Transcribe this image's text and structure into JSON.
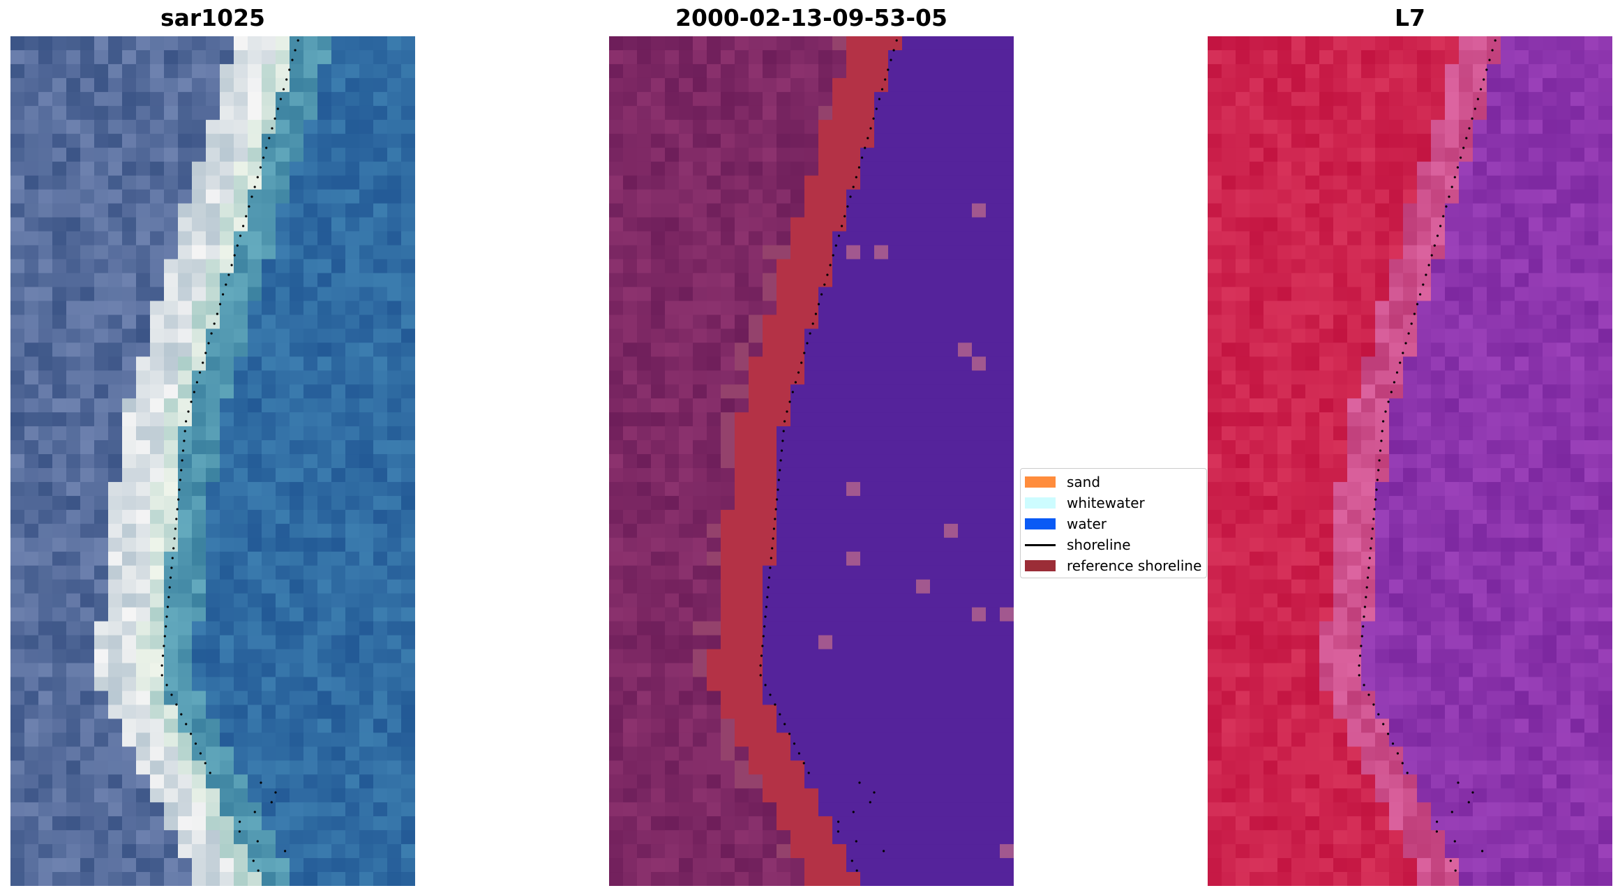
{
  "panels": [
    {
      "title": "sar1025",
      "kind": "rgb"
    },
    {
      "title": "2000-02-13-09-53-05",
      "kind": "classified"
    },
    {
      "title": "L7",
      "kind": "index"
    }
  ],
  "legend": {
    "items": [
      {
        "label": "sand",
        "color": "#ff8c3c",
        "type": "patch"
      },
      {
        "label": "whitewater",
        "color": "#cdfcff",
        "type": "patch"
      },
      {
        "label": "water",
        "color": "#0a5af5",
        "type": "patch"
      },
      {
        "label": "shoreline",
        "color": "#000000",
        "type": "line"
      },
      {
        "label": "reference shoreline",
        "color": "#9b2d37",
        "type": "patch"
      }
    ]
  },
  "colors": {
    "classified_land": "#6e1e5a",
    "classified_sand": "#b43246",
    "classified_water": "#55239b",
    "index_land": "#c31441",
    "index_water": "#8228a0"
  }
}
